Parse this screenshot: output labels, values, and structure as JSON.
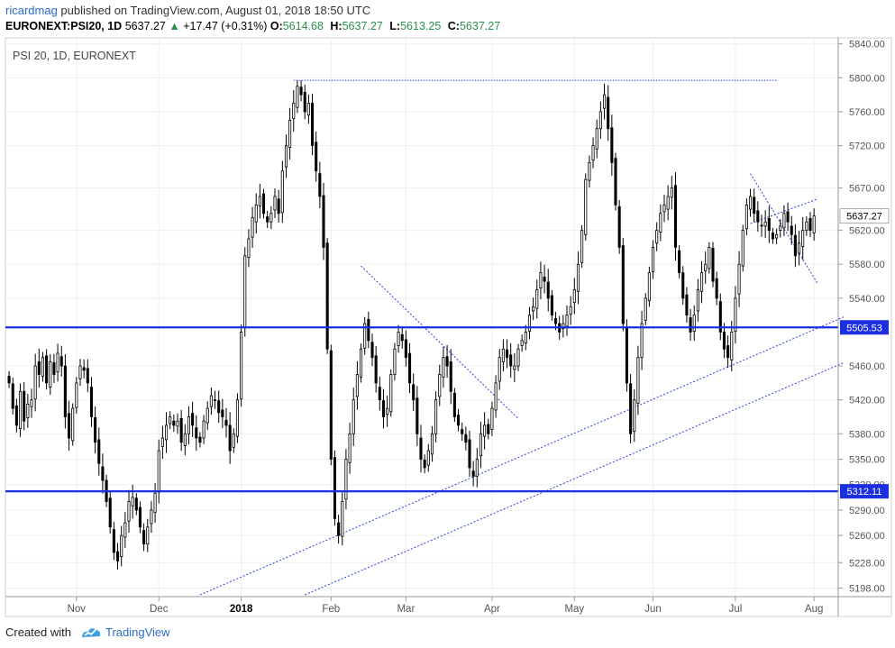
{
  "header": {
    "user": "ricardmag",
    "published_text": "published on TradingView.com, August 01, 2018 18:50 UTC",
    "symbol": "EURONEXT:PSI20, 1D",
    "last": "5637.27",
    "change": "+17.47 (+0.31%)",
    "ohlc": [
      {
        "label": "O:",
        "value": "5614.68"
      },
      {
        "label": "H:",
        "value": "5637.27"
      },
      {
        "label": "L:",
        "value": "5613.25"
      },
      {
        "label": "C:",
        "value": "5637.27"
      }
    ]
  },
  "footer": {
    "created_with": "Created with",
    "brand": "TradingView"
  },
  "chart_data": {
    "type": "candlestick",
    "title": "PSI 20, 1D, EURONEXT",
    "price_axis": {
      "min": 5190,
      "max": 5845,
      "ticks": [
        "5840.00",
        "5800.00",
        "5760.00",
        "5720.00",
        "5670.00",
        "5620.00",
        "5580.00",
        "5540.00",
        "5460.00",
        "5420.00",
        "5380.00",
        "5350.00",
        "5320.00",
        "5290.00",
        "5260.00",
        "5228.00",
        "5198.00"
      ],
      "tick_values": [
        5840,
        5800,
        5760,
        5720,
        5670,
        5620,
        5580,
        5540,
        5460,
        5420,
        5380,
        5350,
        5320,
        5290,
        5260,
        5228,
        5198
      ]
    },
    "time_axis": {
      "labels": [
        "Nov",
        "Dec",
        "2018",
        "Feb",
        "Mar",
        "Apr",
        "May",
        "Jun",
        "Jul",
        "Aug"
      ],
      "label_index": [
        18,
        40,
        62,
        86,
        106,
        129,
        151,
        172,
        194,
        215
      ],
      "total_bars": 221
    },
    "horizontal_levels": [
      {
        "value": 5505.53,
        "label": "5505.53",
        "color": "#1b2ee0"
      },
      {
        "value": 5312.11,
        "label": "5312.11",
        "color": "#1b2ee0"
      }
    ],
    "last_price_label": "5637.27",
    "resistance_line": {
      "value": 5797,
      "from_index": 76,
      "to_index": 205
    },
    "trend_lines": [
      {
        "from": [
          94,
          5578
        ],
        "to": [
          136,
          5398
        ]
      },
      {
        "from": [
          51,
          5190
        ],
        "to": [
          223,
          5518
        ]
      },
      {
        "from": [
          79,
          5190
        ],
        "to": [
          223,
          5464
        ]
      },
      {
        "from": [
          198,
          5687
        ],
        "to": [
          216,
          5557
        ]
      },
      {
        "from": [
          198,
          5628
        ],
        "to": [
          216,
          5657
        ]
      }
    ],
    "closes": [
      5440,
      5410,
      5390,
      5430,
      5395,
      5415,
      5420,
      5460,
      5450,
      5470,
      5440,
      5465,
      5450,
      5475,
      5460,
      5400,
      5375,
      5410,
      5440,
      5460,
      5455,
      5440,
      5400,
      5370,
      5345,
      5325,
      5300,
      5270,
      5240,
      5230,
      5260,
      5275,
      5300,
      5305,
      5290,
      5270,
      5250,
      5270,
      5290,
      5310,
      5360,
      5375,
      5390,
      5400,
      5390,
      5395,
      5370,
      5380,
      5400,
      5390,
      5375,
      5370,
      5395,
      5410,
      5425,
      5420,
      5405,
      5400,
      5390,
      5360,
      5380,
      5420,
      5500,
      5590,
      5610,
      5635,
      5650,
      5660,
      5640,
      5630,
      5640,
      5660,
      5640,
      5690,
      5720,
      5750,
      5770,
      5790,
      5780,
      5760,
      5770,
      5720,
      5690,
      5660,
      5600,
      5480,
      5350,
      5280,
      5260,
      5300,
      5350,
      5380,
      5420,
      5450,
      5480,
      5510,
      5490,
      5470,
      5440,
      5420,
      5400,
      5410,
      5450,
      5480,
      5500,
      5490,
      5470,
      5440,
      5420,
      5380,
      5350,
      5340,
      5360,
      5380,
      5420,
      5450,
      5470,
      5460,
      5430,
      5400,
      5390,
      5380,
      5370,
      5340,
      5330,
      5350,
      5380,
      5390,
      5380,
      5410,
      5440,
      5470,
      5480,
      5470,
      5460,
      5460,
      5480,
      5490,
      5500,
      5520,
      5530,
      5550,
      5570,
      5560,
      5540,
      5520,
      5510,
      5500,
      5510,
      5520,
      5530,
      5550,
      5580,
      5620,
      5680,
      5700,
      5720,
      5740,
      5760,
      5780,
      5740,
      5700,
      5650,
      5600,
      5510,
      5440,
      5380,
      5420,
      5470,
      5510,
      5540,
      5570,
      5600,
      5620,
      5640,
      5650,
      5660,
      5670,
      5600,
      5570,
      5540,
      5520,
      5500,
      5520,
      5550,
      5570,
      5580,
      5600,
      5560,
      5540,
      5500,
      5480,
      5470,
      5500,
      5540,
      5580,
      5620,
      5650,
      5660,
      5640,
      5630,
      5625,
      5630,
      5620,
      5610,
      5615,
      5625,
      5640,
      5630,
      5615,
      5590,
      5605,
      5620,
      5630,
      5620,
      5637
    ]
  }
}
